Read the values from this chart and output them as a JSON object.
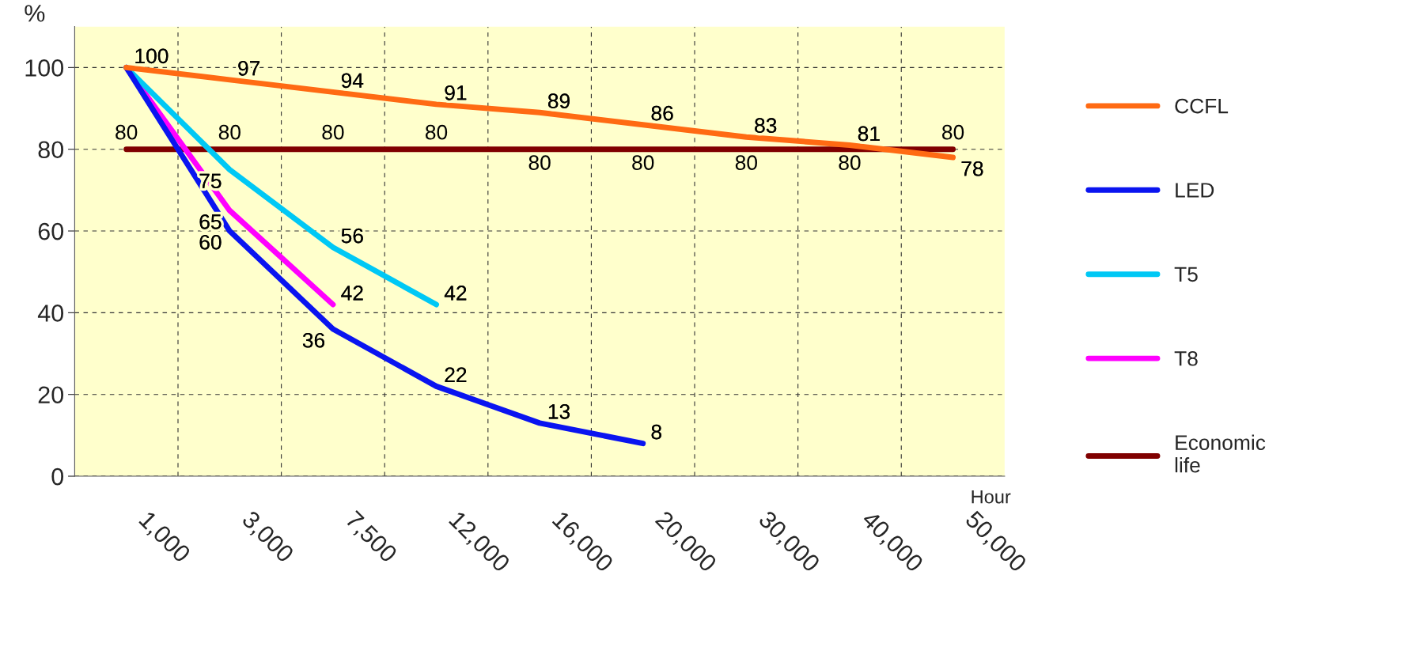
{
  "chart_data": {
    "type": "line",
    "ylabel": "%",
    "xlabel": "Hour",
    "categories": [
      "1,000",
      "3,000",
      "7,500",
      "12,000",
      "16,000",
      "20,000",
      "30,000",
      "40,000",
      "50,000"
    ],
    "series": [
      {
        "name": "CCFL",
        "color": "#ff6a13",
        "values": [
          100,
          97,
          94,
          91,
          89,
          86,
          83,
          81,
          78
        ],
        "value_labels": [
          "100",
          "97",
          "94",
          "91",
          "89",
          "86",
          "83",
          "81",
          "78"
        ]
      },
      {
        "name": "LED",
        "color": "#0a14f0",
        "values": [
          100,
          60,
          36,
          22,
          13,
          8,
          null,
          null,
          null
        ],
        "value_labels": [
          null,
          "60",
          "36",
          "22",
          "13",
          "8",
          null,
          null,
          null
        ]
      },
      {
        "name": "T5",
        "color": "#00c8f5",
        "values": [
          100,
          75,
          56,
          42,
          null,
          null,
          null,
          null,
          null
        ],
        "value_labels": [
          null,
          "75",
          "56",
          "42",
          null,
          null,
          null,
          null,
          null
        ]
      },
      {
        "name": "T8",
        "color": "#ff00ff",
        "values": [
          100,
          65,
          42,
          null,
          null,
          null,
          null,
          null,
          null
        ],
        "value_labels": [
          null,
          "65",
          "42",
          null,
          null,
          null,
          null,
          null,
          null
        ]
      },
      {
        "name": "Economic\nlife",
        "color": "#800000",
        "values": [
          80,
          80,
          80,
          80,
          80,
          80,
          80,
          80,
          80
        ],
        "value_labels": [
          "80",
          "80",
          "80",
          "80",
          "80",
          "80",
          "80",
          "80",
          "80"
        ]
      }
    ],
    "ylim": [
      0,
      110
    ],
    "yticks": [
      0,
      20,
      40,
      60,
      80,
      100
    ],
    "grid": true,
    "legend": "right",
    "data_labels": true,
    "marker": "none",
    "line_style": "solid"
  }
}
